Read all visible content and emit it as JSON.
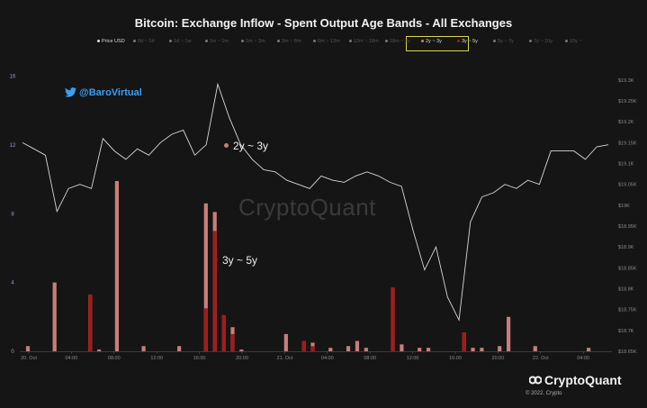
{
  "title": "Bitcoin: Exchange Inflow - Spent Output Age Bands - All Exchanges",
  "legend": [
    {
      "label": "Price USD",
      "active": true
    },
    {
      "label": "0d ~ 1d",
      "active": false
    },
    {
      "label": "1d ~ 1w",
      "active": false
    },
    {
      "label": "1w ~ 1m",
      "active": false
    },
    {
      "label": "1m ~ 3m",
      "active": false
    },
    {
      "label": "3m ~ 6m",
      "active": false
    },
    {
      "label": "6m ~ 12m",
      "active": false
    },
    {
      "label": "12m ~ 18m",
      "active": false
    },
    {
      "label": "18m ~ 2y",
      "active": false
    },
    {
      "label": "2y ~ 3y",
      "active": true
    },
    {
      "label": "3y ~ 5y",
      "active": true
    },
    {
      "label": "5y ~ 7y",
      "active": false
    },
    {
      "label": "7y ~ 10y",
      "active": false
    },
    {
      "label": "10y ~",
      "active": false
    }
  ],
  "twitter_handle": "@BaroVirtual",
  "watermark": "CryptoQuant",
  "annotations": {
    "a": "2y ~ 3y",
    "b": "3y ~ 5y"
  },
  "brand": "CryptoQuant",
  "copyright": "© 2022. Crypto",
  "colors": {
    "band_2y_3y": "#c97e7a",
    "band_3y_5y": "#a11c1c",
    "price": "#d8d8d8",
    "highlight": "#d6d64a",
    "twitter": "#3aa0f2"
  },
  "chart_data": {
    "type": "bar",
    "x_ticks": [
      "20. Oct",
      "04:00",
      "08:00",
      "12:00",
      "16:00",
      "20:00",
      "21. Oct",
      "04:00",
      "08:00",
      "12:00",
      "16:00",
      "20:00",
      "22. Oct",
      "04:00"
    ],
    "y_left_ticks": [
      "0",
      "4",
      "8",
      "12",
      "16"
    ],
    "y_left_range": [
      0,
      16.5
    ],
    "y_right_ticks": [
      "$18.65K",
      "$18.7K",
      "$18.75K",
      "$18.8K",
      "$18.85K",
      "$18.9K",
      "$18.95K",
      "$19K",
      "$19.05K",
      "$19.1K",
      "$19.15K",
      "$19.2K",
      "$19.25K",
      "$19.3K"
    ],
    "y_right_range": [
      18650,
      19330
    ],
    "series": [
      {
        "name": "2y ~ 3y",
        "type": "bar",
        "values": [
          0.3,
          0,
          0,
          4.0,
          0,
          0,
          0,
          1.6,
          0.1,
          0,
          9.9,
          0,
          0,
          0.3,
          0,
          0,
          0,
          0.3,
          0,
          0,
          8.6,
          8.1,
          1.2,
          1.4,
          0.1,
          0,
          0,
          0,
          0,
          1.0,
          0,
          0.5,
          0.5,
          0,
          0.2,
          0,
          0.3,
          0.6,
          0.2,
          0,
          0,
          3.3,
          0.4,
          0,
          0.2,
          0.2,
          0,
          0,
          0,
          0.3,
          0.2,
          0.2,
          0,
          0.3,
          2.0,
          0,
          0,
          0.3,
          0,
          0,
          0,
          0,
          0,
          0.2
        ]
      },
      {
        "name": "3y ~ 5y",
        "type": "bar",
        "values": [
          0,
          0,
          0,
          0,
          0,
          0,
          0,
          3.3,
          0,
          0,
          0,
          0,
          0,
          0,
          0,
          0,
          0,
          0,
          0,
          0,
          2.5,
          7.0,
          2.1,
          1.0,
          0,
          0,
          0,
          0,
          0,
          0,
          0,
          0.6,
          0.3,
          0,
          0,
          0,
          0,
          0,
          0,
          0,
          0,
          3.7,
          0,
          0,
          0,
          0,
          0,
          0,
          0,
          1.1,
          0,
          0,
          0,
          0,
          0,
          0,
          0,
          0,
          0,
          0,
          0,
          0,
          0,
          0
        ]
      },
      {
        "name": "Price USD",
        "type": "line",
        "values": [
          19150,
          19135,
          19120,
          18985,
          19040,
          19050,
          19040,
          19160,
          19130,
          19110,
          19135,
          19120,
          19150,
          19170,
          19180,
          19120,
          19145,
          19290,
          19210,
          19145,
          19110,
          19085,
          19080,
          19060,
          19050,
          19040,
          19070,
          19060,
          19055,
          19070,
          19080,
          19070,
          19055,
          19045,
          18940,
          18845,
          18900,
          18780,
          18725,
          18960,
          19020,
          19030,
          19050,
          19040,
          19060,
          19050,
          19130,
          19130,
          19130,
          19110,
          19140,
          19145
        ]
      }
    ]
  }
}
